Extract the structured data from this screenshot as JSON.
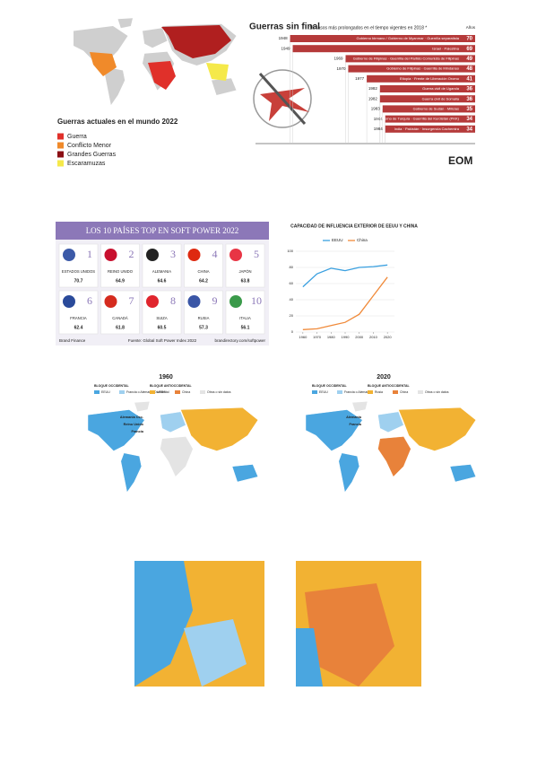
{
  "war_map": {
    "legend_title": "Guerras actuales en el mundo 2022",
    "legend": [
      {
        "label": "Guerra",
        "color": "#e0302a"
      },
      {
        "label": "Conflicto Menor",
        "color": "#f08a2a"
      },
      {
        "label": "Grandes Guerras",
        "color": "#8b0f14"
      },
      {
        "label": "Escaramuzas",
        "color": "#f5e94a"
      }
    ]
  },
  "longest_wars": {
    "title": "Guerras sin final",
    "subtitle": "10 casos más prolongados en el tiempo vigentes en 2018 *",
    "unit": "Años",
    "color": "#b53a3a",
    "xlim": [
      0,
      78
    ],
    "rows": [
      {
        "start": "1948",
        "label": "Gobierno birmano / Gobierno de Myanmar · Guerrilla separatista",
        "value": 70
      },
      {
        "start": "1949",
        "label": "Israel · Palestina",
        "value": 69
      },
      {
        "start": "1969",
        "label": "Gobierno de Filipinas · Guerrilla del Partido Comunista de Filipinas",
        "value": 49
      },
      {
        "start": "1970",
        "label": "Gobierno de Filipinas · Guerrilla de Mindanao",
        "value": 48
      },
      {
        "start": "1977",
        "label": "Etiopía · Frente de Liberación Oromo",
        "value": 41
      },
      {
        "start": "1982",
        "label": "Guerra civil de Uganda",
        "value": 36
      },
      {
        "start": "1982",
        "label": "Guerra civil de Somalia",
        "value": 36
      },
      {
        "start": "1983",
        "label": "Gobierno de Sudán · Milicias",
        "value": 35
      },
      {
        "start": "1984",
        "label": "Gobierno de Turquía · Guerrilla del Kurdistán (PKK)",
        "value": 34
      },
      {
        "start": "1984",
        "label": "India · Pakistán · Insurgencia Cachemira",
        "value": 34
      }
    ],
    "logo": "EOM"
  },
  "soft_power": {
    "title": "LOS 10 PAÍSES TOP EN SOFT POWER 2022",
    "countries": [
      {
        "rank": "1",
        "name": "ESTADOS UNIDOS",
        "score": "70.7",
        "flag": "#3c5aa8"
      },
      {
        "rank": "2",
        "name": "REINO UNIDO",
        "score": "64.9",
        "flag": "#c8102e"
      },
      {
        "rank": "3",
        "name": "ALEMANIA",
        "score": "64.6",
        "flag": "#222222"
      },
      {
        "rank": "4",
        "name": "CHINA",
        "score": "64.2",
        "flag": "#de2910"
      },
      {
        "rank": "5",
        "name": "JAPÓN",
        "score": "63.8",
        "flag": "#e83545"
      },
      {
        "rank": "6",
        "name": "FRANCIA",
        "score": "62.4",
        "flag": "#2a4a9a"
      },
      {
        "rank": "7",
        "name": "CANADÁ",
        "score": "61.8",
        "flag": "#d52b1e"
      },
      {
        "rank": "8",
        "name": "SUIZA",
        "score": "60.5",
        "flag": "#e0252d"
      },
      {
        "rank": "9",
        "name": "RUSIA",
        "score": "57.3",
        "flag": "#3a56a6"
      },
      {
        "rank": "10",
        "name": "ITALIA",
        "score": "56.1",
        "flag": "#3a9a4a"
      }
    ],
    "brand": "Brand Finance",
    "source": "Fuente: Global Soft Power Index 2022",
    "url": "brandirectory.com/softpower"
  },
  "chart_data": {
    "type": "line",
    "title": "CAPACIDAD DE INFLUENCIA EXTERIOR DE EEUU Y CHINA",
    "x": [
      1960,
      1970,
      1980,
      1990,
      2000,
      2010,
      2020
    ],
    "series": [
      {
        "name": "EEUU",
        "color": "#3aa0e0",
        "values": [
          56,
          72,
          79,
          76,
          80,
          81,
          83
        ]
      },
      {
        "name": "China",
        "color": "#f08a3a",
        "values": [
          3,
          4,
          8,
          12,
          22,
          45,
          68
        ]
      }
    ],
    "xlim": [
      1955,
      2025
    ],
    "xticks": [
      1960,
      1970,
      1980,
      1990,
      2000,
      2010,
      2020
    ],
    "ylim": [
      0,
      100
    ],
    "yticks": [
      0,
      20,
      40,
      60,
      80,
      100
    ]
  },
  "maps": [
    {
      "title": "1960",
      "groups": [
        {
          "label": "BLOQUE OCCIDENTAL",
          "items": [
            {
              "label": "EEUU",
              "color": "#4aa6e0"
            },
            {
              "label": "Francia o Alemania Occidental",
              "color": "#9fd0ef"
            }
          ]
        },
        {
          "label": "BLOQUE ANTIOCCIDENTAL",
          "items": [
            {
              "label": "URSS",
              "color": "#f2b233"
            },
            {
              "label": "China",
              "color": "#e8823a"
            },
            {
              "label": "Otros o sin datos",
              "color": "#e4e4e4"
            }
          ]
        }
      ],
      "places": [
        "Alemania Occ.",
        "Reino Unido",
        "Francia"
      ]
    },
    {
      "title": "2020",
      "groups": [
        {
          "label": "BLOQUE OCCIDENTAL",
          "items": [
            {
              "label": "EEUU",
              "color": "#4aa6e0"
            },
            {
              "label": "Francia o Alemania",
              "color": "#9fd0ef"
            }
          ]
        },
        {
          "label": "BLOQUE ANTIOCCIDENTAL",
          "items": [
            {
              "label": "Rusia",
              "color": "#f2b233"
            },
            {
              "label": "China",
              "color": "#e8823a"
            },
            {
              "label": "Otros o sin datos",
              "color": "#e4e4e4"
            }
          ]
        }
      ],
      "places": [
        "Alemania",
        "Francia"
      ]
    }
  ]
}
